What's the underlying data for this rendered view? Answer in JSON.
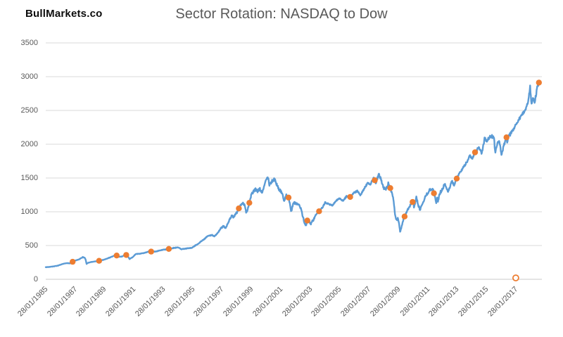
{
  "header": {
    "logo": "BullMarkets.co",
    "title": "Sector Rotation: NASDAQ to Dow"
  },
  "chart_data": {
    "type": "line",
    "title": "Sector Rotation: NASDAQ to Dow",
    "xlabel": "",
    "ylabel": "",
    "xlim": [
      1985.07,
      2018.85
    ],
    "ylim": [
      0,
      3500
    ],
    "grid": "horizontal-only",
    "legend": "none",
    "colors": {
      "line": "#5B9BD5",
      "marker": "#ED7D31",
      "gridline": "#D9D9D9",
      "axis_line": "#C9C9C9",
      "axis_text": "#595959",
      "title_text": "#595959"
    },
    "y_ticks": [
      0,
      500,
      1000,
      1500,
      2000,
      2500,
      3000,
      3500
    ],
    "x_ticks": [
      {
        "year": 1985.07,
        "label": "28/01/1985"
      },
      {
        "year": 1987.07,
        "label": "28/01/1987"
      },
      {
        "year": 1989.07,
        "label": "28/01/1989"
      },
      {
        "year": 1991.07,
        "label": "28/01/1991"
      },
      {
        "year": 1993.07,
        "label": "28/01/1993"
      },
      {
        "year": 1995.07,
        "label": "28/01/1995"
      },
      {
        "year": 1997.07,
        "label": "28/01/1997"
      },
      {
        "year": 1999.07,
        "label": "28/01/1999"
      },
      {
        "year": 2001.07,
        "label": "28/01/2001"
      },
      {
        "year": 2003.07,
        "label": "28/01/2003"
      },
      {
        "year": 2005.07,
        "label": "28/01/2005"
      },
      {
        "year": 2007.07,
        "label": "28/01/2007"
      },
      {
        "year": 2009.07,
        "label": "28/01/2009"
      },
      {
        "year": 2011.07,
        "label": "28/01/2011"
      },
      {
        "year": 2013.07,
        "label": "28/01/2013"
      },
      {
        "year": 2015.07,
        "label": "28/01/2015"
      },
      {
        "year": 2017.07,
        "label": "28/01/2017"
      }
    ],
    "series": [
      {
        "name": "index-price-line",
        "type": "line",
        "color": "#5B9BD5",
        "keyframes": [
          [
            1985.07,
            179
          ],
          [
            1985.3,
            183
          ],
          [
            1985.6,
            191
          ],
          [
            1985.9,
            203
          ],
          [
            1986.2,
            226
          ],
          [
            1986.5,
            240
          ],
          [
            1986.75,
            236
          ],
          [
            1987.0,
            274
          ],
          [
            1987.3,
            292
          ],
          [
            1987.6,
            329
          ],
          [
            1987.73,
            318
          ],
          [
            1987.8,
            282
          ],
          [
            1987.85,
            230
          ],
          [
            1987.95,
            245
          ],
          [
            1988.2,
            258
          ],
          [
            1988.5,
            266
          ],
          [
            1988.8,
            278
          ],
          [
            1989.1,
            295
          ],
          [
            1989.4,
            320
          ],
          [
            1989.7,
            346
          ],
          [
            1989.95,
            353
          ],
          [
            1990.1,
            332
          ],
          [
            1990.3,
            340
          ],
          [
            1990.45,
            365
          ],
          [
            1990.6,
            358
          ],
          [
            1990.78,
            300
          ],
          [
            1991.0,
            330
          ],
          [
            1991.2,
            375
          ],
          [
            1991.5,
            380
          ],
          [
            1991.8,
            392
          ],
          [
            1992.1,
            412
          ],
          [
            1992.4,
            408
          ],
          [
            1992.7,
            418
          ],
          [
            1993.0,
            435
          ],
          [
            1993.4,
            448
          ],
          [
            1993.8,
            465
          ],
          [
            1994.1,
            472
          ],
          [
            1994.3,
            445
          ],
          [
            1994.7,
            458
          ],
          [
            1995.0,
            465
          ],
          [
            1995.4,
            520
          ],
          [
            1995.8,
            585
          ],
          [
            1996.1,
            640
          ],
          [
            1996.4,
            655
          ],
          [
            1996.55,
            635
          ],
          [
            1996.8,
            690
          ],
          [
            1997.0,
            760
          ],
          [
            1997.2,
            790
          ],
          [
            1997.3,
            745
          ],
          [
            1997.6,
            890
          ],
          [
            1997.75,
            950
          ],
          [
            1997.85,
            915
          ],
          [
            1998.0,
            970
          ],
          [
            1998.1,
            990
          ],
          [
            1998.3,
            1090
          ],
          [
            1998.5,
            1130
          ],
          [
            1998.62,
            1100
          ],
          [
            1998.72,
            980
          ],
          [
            1998.85,
            1060
          ],
          [
            1999.05,
            1240
          ],
          [
            1999.2,
            1300
          ],
          [
            1999.35,
            1330
          ],
          [
            1999.5,
            1300
          ],
          [
            1999.65,
            1340
          ],
          [
            1999.8,
            1270
          ],
          [
            2000.0,
            1440
          ],
          [
            2000.2,
            1510
          ],
          [
            2000.3,
            1400
          ],
          [
            2000.45,
            1450
          ],
          [
            2000.65,
            1480
          ],
          [
            2000.8,
            1400
          ],
          [
            2000.95,
            1330
          ],
          [
            2001.1,
            1300
          ],
          [
            2001.2,
            1240
          ],
          [
            2001.3,
            1160
          ],
          [
            2001.45,
            1250
          ],
          [
            2001.6,
            1210
          ],
          [
            2001.72,
            1090
          ],
          [
            2001.78,
            1000
          ],
          [
            2001.95,
            1140
          ],
          [
            2002.1,
            1120
          ],
          [
            2002.3,
            1110
          ],
          [
            2002.45,
            1050
          ],
          [
            2002.55,
            950
          ],
          [
            2002.7,
            830
          ],
          [
            2002.78,
            790
          ],
          [
            2002.88,
            870
          ],
          [
            2003.0,
            855
          ],
          [
            2003.1,
            810
          ],
          [
            2003.2,
            855
          ],
          [
            2003.3,
            880
          ],
          [
            2003.45,
            950
          ],
          [
            2003.65,
            1000
          ],
          [
            2003.9,
            1060
          ],
          [
            2004.1,
            1140
          ],
          [
            2004.35,
            1110
          ],
          [
            2004.6,
            1095
          ],
          [
            2004.85,
            1170
          ],
          [
            2005.1,
            1200
          ],
          [
            2005.3,
            1160
          ],
          [
            2005.55,
            1230
          ],
          [
            2005.8,
            1220
          ],
          [
            2006.0,
            1270
          ],
          [
            2006.3,
            1310
          ],
          [
            2006.5,
            1245
          ],
          [
            2006.8,
            1360
          ],
          [
            2007.0,
            1430
          ],
          [
            2007.15,
            1400
          ],
          [
            2007.4,
            1500
          ],
          [
            2007.55,
            1430
          ],
          [
            2007.75,
            1555
          ],
          [
            2007.9,
            1480
          ],
          [
            2008.05,
            1360
          ],
          [
            2008.2,
            1320
          ],
          [
            2008.4,
            1420
          ],
          [
            2008.55,
            1340
          ],
          [
            2008.68,
            1255
          ],
          [
            2008.78,
            1120
          ],
          [
            2008.85,
            950
          ],
          [
            2008.95,
            880
          ],
          [
            2009.05,
            900
          ],
          [
            2009.13,
            820
          ],
          [
            2009.2,
            690
          ],
          [
            2009.35,
            830
          ],
          [
            2009.5,
            930
          ],
          [
            2009.7,
            1020
          ],
          [
            2009.9,
            1100
          ],
          [
            2010.05,
            1145
          ],
          [
            2010.15,
            1070
          ],
          [
            2010.3,
            1210
          ],
          [
            2010.45,
            1090
          ],
          [
            2010.55,
            1030
          ],
          [
            2010.7,
            1110
          ],
          [
            2010.9,
            1220
          ],
          [
            2011.1,
            1290
          ],
          [
            2011.3,
            1340
          ],
          [
            2011.45,
            1320
          ],
          [
            2011.58,
            1200
          ],
          [
            2011.65,
            1130
          ],
          [
            2011.72,
            1210
          ],
          [
            2011.78,
            1140
          ],
          [
            2011.88,
            1260
          ],
          [
            2012.0,
            1310
          ],
          [
            2012.25,
            1410
          ],
          [
            2012.45,
            1300
          ],
          [
            2012.6,
            1370
          ],
          [
            2012.72,
            1460
          ],
          [
            2012.87,
            1390
          ],
          [
            2013.0,
            1470
          ],
          [
            2013.2,
            1560
          ],
          [
            2013.45,
            1640
          ],
          [
            2013.6,
            1690
          ],
          [
            2013.8,
            1760
          ],
          [
            2013.95,
            1840
          ],
          [
            2014.1,
            1780
          ],
          [
            2014.3,
            1880
          ],
          [
            2014.55,
            1960
          ],
          [
            2014.75,
            1865
          ],
          [
            2014.95,
            2080
          ],
          [
            2015.1,
            2050
          ],
          [
            2015.25,
            2100
          ],
          [
            2015.45,
            2120
          ],
          [
            2015.6,
            2080
          ],
          [
            2015.67,
            1870
          ],
          [
            2015.8,
            1990
          ],
          [
            2015.95,
            2070
          ],
          [
            2016.1,
            1820
          ],
          [
            2016.2,
            1930
          ],
          [
            2016.4,
            2090
          ],
          [
            2016.45,
            2105
          ],
          [
            2016.5,
            2000
          ],
          [
            2016.56,
            2100
          ],
          [
            2016.75,
            2170
          ],
          [
            2016.9,
            2210
          ],
          [
            2017.1,
            2300
          ],
          [
            2017.3,
            2370
          ],
          [
            2017.5,
            2440
          ],
          [
            2017.7,
            2490
          ],
          [
            2017.9,
            2610
          ],
          [
            2018.05,
            2850
          ],
          [
            2018.13,
            2590
          ],
          [
            2018.25,
            2670
          ],
          [
            2018.35,
            2620
          ],
          [
            2018.45,
            2740
          ],
          [
            2018.55,
            2850
          ],
          [
            2018.62,
            2895
          ],
          [
            2018.67,
            2930
          ],
          [
            2018.72,
            2890
          ]
        ]
      },
      {
        "name": "rotation-event-markers",
        "type": "scatter",
        "color": "#ED7D31",
        "points": [
          [
            1986.9,
            259
          ],
          [
            1988.7,
            274
          ],
          [
            1989.9,
            352
          ],
          [
            1990.55,
            360
          ],
          [
            1992.25,
            410
          ],
          [
            1993.45,
            450
          ],
          [
            1998.22,
            1050
          ],
          [
            1998.93,
            1132
          ],
          [
            2001.6,
            1210
          ],
          [
            2002.88,
            870
          ],
          [
            2003.68,
            1007
          ],
          [
            2005.8,
            1220
          ],
          [
            2007.47,
            1467
          ],
          [
            2008.53,
            1351
          ],
          [
            2009.5,
            930
          ],
          [
            2010.05,
            1145
          ],
          [
            2011.5,
            1274
          ],
          [
            2013.05,
            1492
          ],
          [
            2014.3,
            1880
          ],
          [
            2016.44,
            2102
          ],
          [
            2018.65,
            2913
          ]
        ]
      },
      {
        "name": "open-marker",
        "type": "scatter-open",
        "color": "#ED7D31",
        "points": [
          [
            2017.07,
            0
          ]
        ]
      }
    ]
  }
}
